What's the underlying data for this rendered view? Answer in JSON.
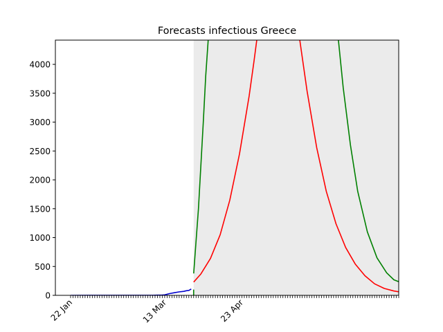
{
  "chart_data": {
    "type": "line",
    "title": "Forecasts infectious Greece",
    "xlabel": "",
    "ylabel": "",
    "ylim": [
      0,
      4420
    ],
    "y_ticks": [
      0,
      500,
      1000,
      1500,
      2000,
      2500,
      3000,
      3500,
      4000
    ],
    "x_tick_labels": [
      "22 Jan",
      "13 Mar",
      "23 Apr"
    ],
    "grid": false,
    "legend": "none",
    "colors": {
      "observed": "#0000cc",
      "forecast": "#ff0000",
      "upper": "#008000",
      "band": "#ebebeb"
    },
    "series": [
      {
        "role": "observed",
        "x": [
          "2020-01-22",
          "2020-02-25",
          "2020-02-27",
          "2020-02-29",
          "2020-03-01",
          "2020-03-03",
          "2020-03-05",
          "2020-03-07",
          "2020-03-09",
          "2020-03-10",
          "2020-03-11",
          "2020-03-12"
        ],
        "y": [
          0,
          1,
          3,
          5,
          8,
          30,
          45,
          60,
          70,
          80,
          85,
          110
        ]
      },
      {
        "role": "forecast",
        "x": [
          "2020-03-13",
          "2020-03-16",
          "2020-03-20",
          "2020-03-24",
          "2020-03-28",
          "2020-04-01",
          "2020-04-05",
          "2020-04-07",
          "2020-04-10",
          "2020-04-24",
          "2020-04-26",
          "2020-04-29",
          "2020-05-03",
          "2020-05-07",
          "2020-05-11",
          "2020-05-15",
          "2020-05-19",
          "2020-05-23",
          "2020-05-27",
          "2020-05-31",
          "2020-06-04",
          "2020-06-07"
        ],
        "y": [
          230,
          370,
          640,
          1050,
          1650,
          2450,
          3450,
          4050,
          5000,
          5000,
          4420,
          3540,
          2560,
          1800,
          1240,
          830,
          540,
          340,
          200,
          120,
          75,
          55
        ]
      },
      {
        "role": "upper",
        "x": [
          "2020-03-13",
          "2020-03-15",
          "2020-03-17",
          "2020-03-18",
          "2020-03-20",
          "2020-05-10",
          "2020-05-12",
          "2020-05-14",
          "2020-05-17",
          "2020-05-20",
          "2020-05-24",
          "2020-05-28",
          "2020-06-01",
          "2020-06-04",
          "2020-06-07"
        ],
        "y": [
          380,
          1500,
          3000,
          3800,
          5000,
          5000,
          4420,
          3600,
          2600,
          1800,
          1100,
          650,
          390,
          270,
          220
        ]
      }
    ]
  }
}
